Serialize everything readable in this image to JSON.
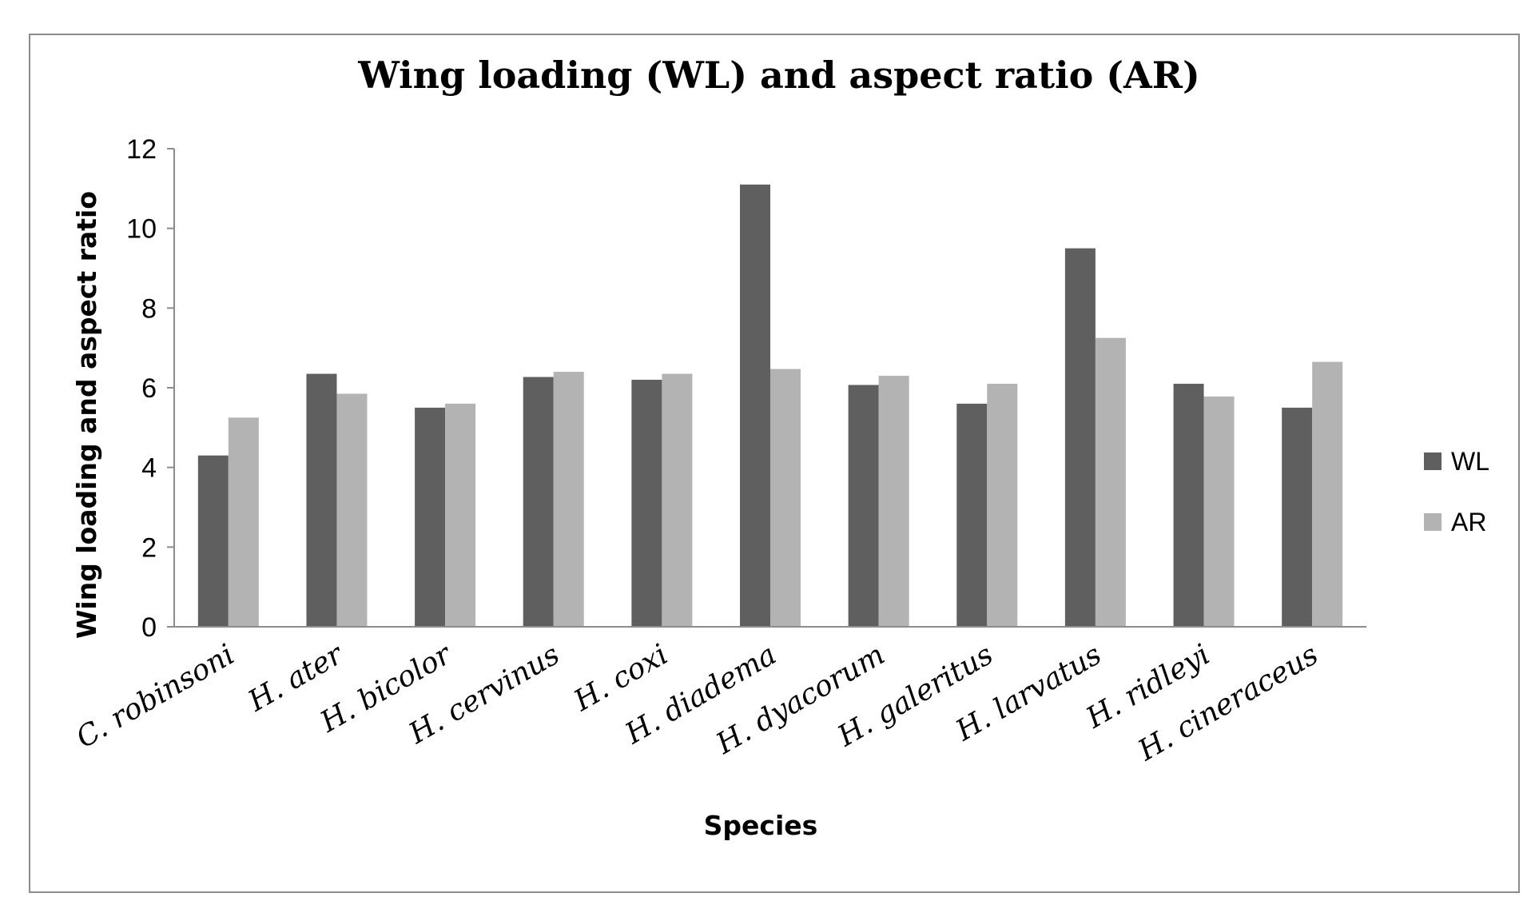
{
  "chart_data": {
    "type": "bar",
    "title": "Wing loading (WL) and aspect ratio (AR)",
    "xlabel": "Species",
    "ylabel": "Wing loading and aspect ratio",
    "ylim": [
      0,
      12
    ],
    "yticks": [
      "0",
      "2",
      "4",
      "6",
      "8",
      "10",
      "12"
    ],
    "categories": [
      "C. robinsoni",
      "H. ater",
      "H. bicolor",
      "H. cervinus",
      "H. coxi",
      "H. diadema",
      "H. dyacorum",
      "H. galeritus",
      "H. larvatus",
      "H. ridleyi",
      "H. cineraceus"
    ],
    "series": [
      {
        "name": "WL",
        "color": "#5f5f5f",
        "values": [
          4.3,
          6.35,
          5.5,
          6.27,
          6.2,
          11.1,
          6.07,
          5.6,
          9.5,
          6.1,
          5.5
        ]
      },
      {
        "name": "AR",
        "color": "#b3b3b3",
        "values": [
          5.25,
          5.85,
          5.6,
          6.4,
          6.35,
          6.47,
          6.3,
          6.1,
          7.25,
          5.78,
          6.65
        ]
      }
    ],
    "grid": false,
    "legend": "right"
  }
}
